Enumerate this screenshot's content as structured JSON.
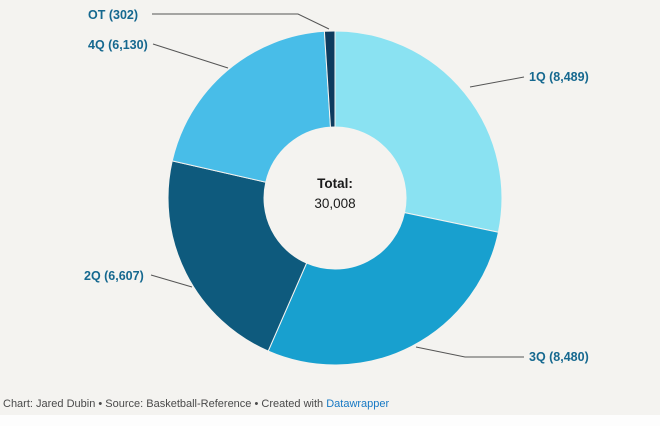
{
  "background": "#f4f3f0",
  "label_color": "#15688f",
  "chart_data": {
    "type": "pie",
    "donut": true,
    "direction": "clockwise",
    "start_angle_deg": 0,
    "center_label": "Total:",
    "center_value": "30,008",
    "total": 30008,
    "slices": [
      {
        "label": "1Q",
        "value": 8489,
        "display": "1Q (8,489)",
        "color": "#8ae2f2"
      },
      {
        "label": "3Q",
        "value": 8480,
        "display": "3Q (8,480)",
        "color": "#18a0cf"
      },
      {
        "label": "2Q",
        "value": 6607,
        "display": "2Q (6,607)",
        "color": "#0e5a7d"
      },
      {
        "label": "4Q",
        "value": 6130,
        "display": "4Q (6,130)",
        "color": "#48bde8"
      },
      {
        "label": "OT",
        "value": 302,
        "display": "OT (302)",
        "color": "#0d3b5e"
      }
    ],
    "legend_position": "outside-callouts",
    "grid": false
  },
  "footer": {
    "credit_prefix": "Chart: Jared Dubin • Source: Basketball-Reference • Created with ",
    "link_label": "Datawrapper"
  }
}
